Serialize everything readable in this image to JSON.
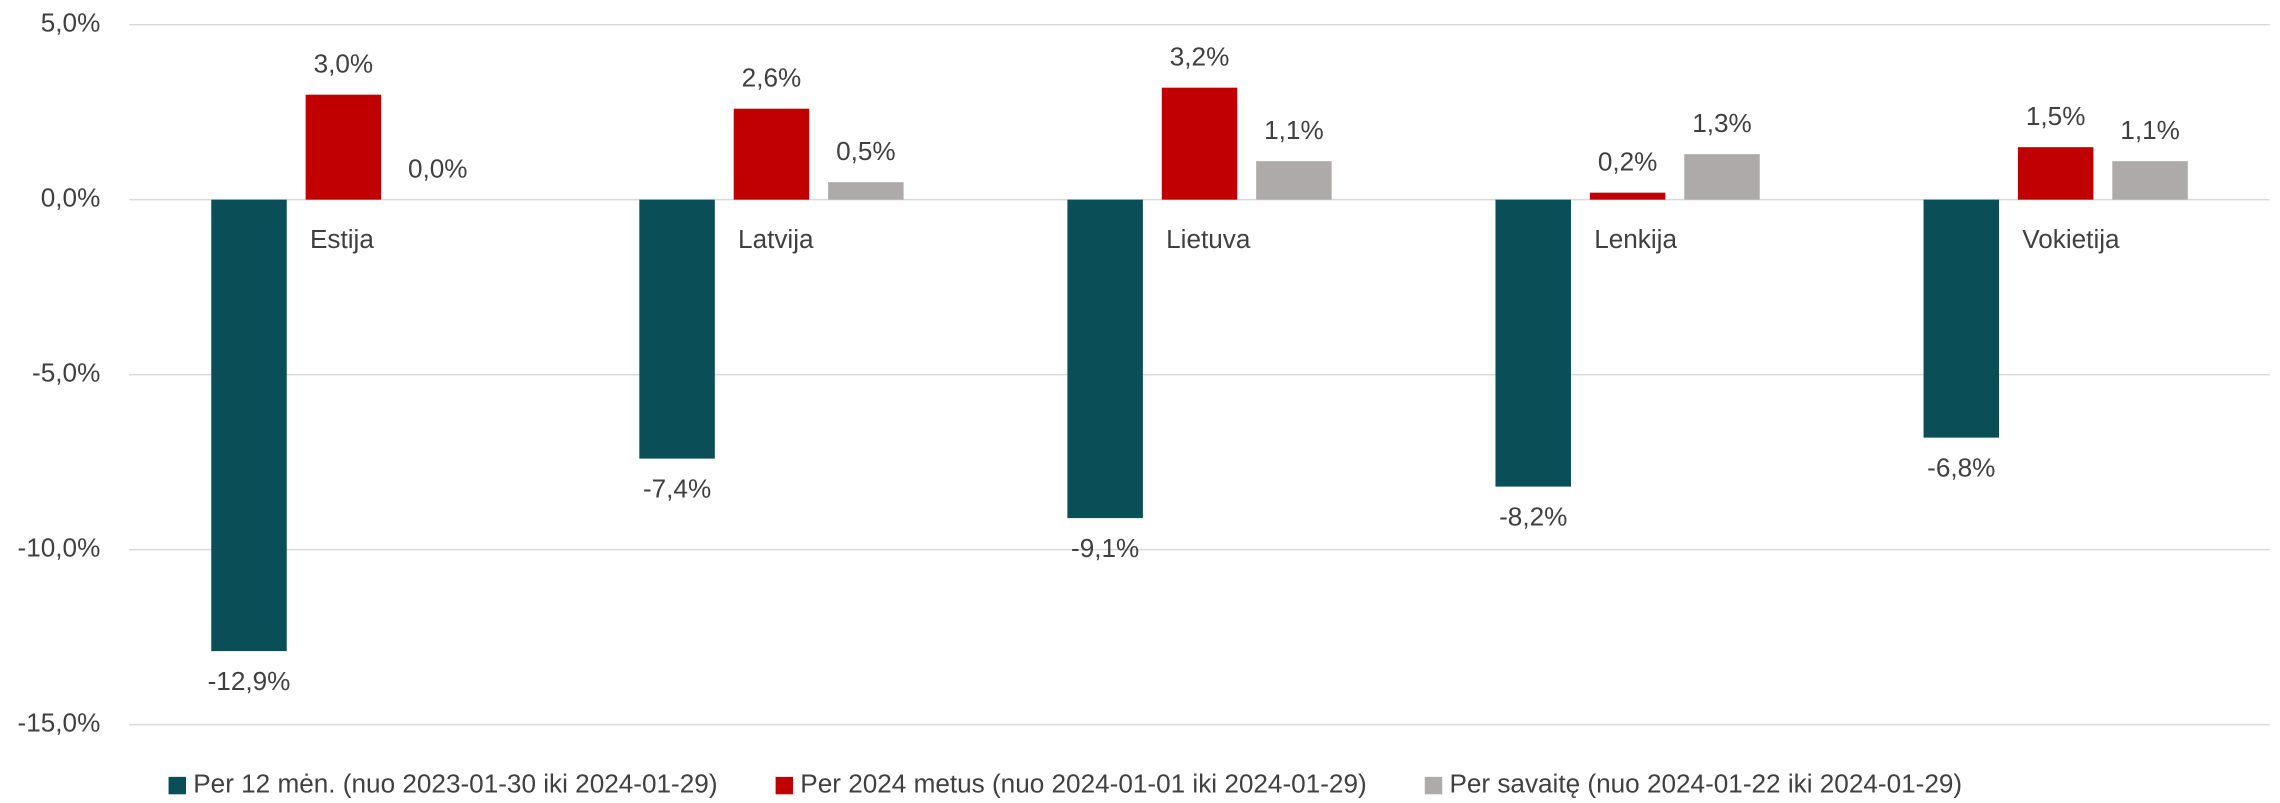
{
  "chart_data": {
    "type": "bar",
    "categories": [
      "Estija",
      "Latvija",
      "Lietuva",
      "Lenkija",
      "Vokietija"
    ],
    "series": [
      {
        "name": "Per 12 mėn. (nuo 2023-01-30 iki 2024-01-29)",
        "color": "#0a4f57",
        "values": [
          -12.9,
          -7.4,
          -9.1,
          -8.2,
          -6.8
        ],
        "value_labels": [
          "-12,9%",
          "-7,4%",
          "-9,1%",
          "-8,2%",
          "-6,8%"
        ]
      },
      {
        "name": "Per 2024 metus (nuo 2024-01-01 iki 2024-01-29)",
        "color": "#c00000",
        "values": [
          3.0,
          2.6,
          3.2,
          0.2,
          1.5
        ],
        "value_labels": [
          "3,0%",
          "2,6%",
          "3,2%",
          "0,2%",
          "1,5%"
        ]
      },
      {
        "name": "Per savaitę (nuo 2024-01-22 iki 2024-01-29)",
        "color": "#aeaaaa",
        "values": [
          0.0,
          0.5,
          1.1,
          1.3,
          1.1
        ],
        "value_labels": [
          "0,0%",
          "0,5%",
          "1,1%",
          "1,3%",
          "1,1%"
        ]
      }
    ],
    "ylim": [
      -15,
      5
    ],
    "yticks": [
      {
        "value": -15,
        "label": "-15,0%"
      },
      {
        "value": -10,
        "label": "-10,0%"
      },
      {
        "value": -5,
        "label": "-5,0%"
      },
      {
        "value": 0,
        "label": "0,0%"
      },
      {
        "value": 5,
        "label": "5,0%"
      }
    ],
    "grid": true,
    "legend": "bottom"
  }
}
